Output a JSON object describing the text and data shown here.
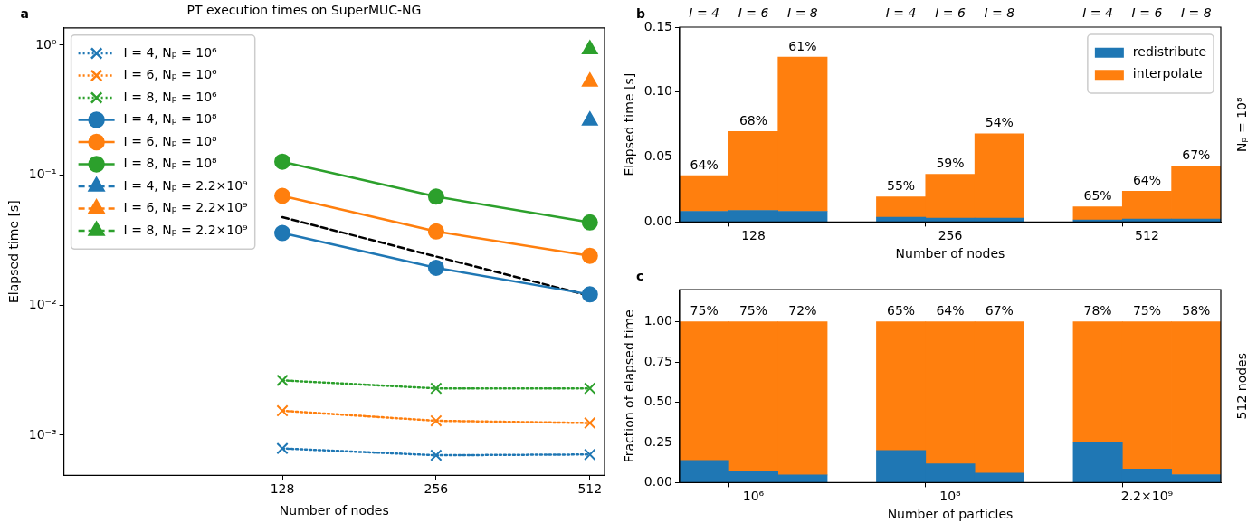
{
  "chart_data": [
    {
      "type": "line",
      "title": "PT execution times on SuperMUC-NG",
      "xlabel": "Number of nodes",
      "ylabel": "Elapsed time [s]",
      "annotations": [
        "a"
      ],
      "log": "xy",
      "xlim": [
        47.8,
        547
      ],
      "xticks": [
        128,
        256,
        512
      ],
      "ylim": [
        0.00049,
        1.36
      ],
      "yticks": [
        {
          "value": 1,
          "label": "10⁰"
        },
        {
          "value": 0.1,
          "label": "10⁻¹"
        },
        {
          "value": 0.01,
          "label": "10⁻²"
        },
        {
          "value": 0.001,
          "label": "10⁻³"
        }
      ],
      "legend": "top left",
      "series": [
        {
          "name": "I = 4, Nₚ = 10⁶",
          "color": "#1f77b4",
          "x": [
            128,
            256,
            512
          ],
          "values": [
            0.00079,
            0.0007,
            0.00071
          ],
          "marker": "cross",
          "line_style": "dotted"
        },
        {
          "name": "I = 6, Nₚ = 10⁶",
          "color": "#ff7f0e",
          "x": [
            128,
            256,
            512
          ],
          "values": [
            0.00154,
            0.00129,
            0.00124
          ],
          "marker": "cross",
          "line_style": "dotted"
        },
        {
          "name": "I = 8, Nₚ = 10⁶",
          "color": "#2ca02c",
          "x": [
            128,
            256,
            512
          ],
          "values": [
            0.00264,
            0.00229,
            0.00229
          ],
          "marker": "cross",
          "line_style": "dotted"
        },
        {
          "name": "I = 4, Nₚ = 10⁸",
          "color": "#1f77b4",
          "x": [
            128,
            256,
            512
          ],
          "values": [
            0.0359,
            0.0194,
            0.0121
          ],
          "marker": "circle",
          "line_style": "solid"
        },
        {
          "name": "I = 6, Nₚ = 10⁸",
          "color": "#ff7f0e",
          "x": [
            128,
            256,
            512
          ],
          "values": [
            0.0693,
            0.0369,
            0.024
          ],
          "marker": "circle",
          "line_style": "solid"
        },
        {
          "name": "I = 8, Nₚ = 10⁸",
          "color": "#2ca02c",
          "x": [
            128,
            256,
            512
          ],
          "values": [
            0.127,
            0.0684,
            0.0433
          ],
          "marker": "circle",
          "line_style": "solid"
        },
        {
          "name": "I = 4, Nₚ = 2.2×10⁹",
          "color": "#1f77b4",
          "x": [
            512
          ],
          "values": [
            0.263
          ],
          "marker": "triangle",
          "line_style": "dashed"
        },
        {
          "name": "I = 6, Nₚ = 2.2×10⁹",
          "color": "#ff7f0e",
          "x": [
            512
          ],
          "values": [
            0.525
          ],
          "marker": "triangle",
          "line_style": "dashed"
        },
        {
          "name": "I = 8, Nₚ = 2.2×10⁹",
          "color": "#2ca02c",
          "x": [
            512
          ],
          "values": [
            0.931
          ],
          "marker": "triangle",
          "line_style": "dashed"
        },
        {
          "color": "#000000",
          "x": [
            128,
            512
          ],
          "values": [
            0.0475,
            0.0118
          ],
          "marker": "none",
          "line_style": "dashed"
        }
      ]
    },
    {
      "type": "bar",
      "stacked": true,
      "xlabel": "Number of nodes",
      "ylabel": "Elapsed time [s]",
      "y2label": "Nₚ = 10⁸",
      "annotations": [
        "b",
        "I = 4",
        "I = 6",
        "I = 8",
        "I = 4",
        "I = 6",
        "I = 8",
        "I = 4",
        "I = 6",
        "I = 8",
        "64%",
        "68%",
        "61%",
        "55%",
        "59%",
        "54%",
        "65%",
        "64%",
        "67%"
      ],
      "categories": [
        null,
        "128",
        null,
        null,
        null,
        "256",
        null,
        null,
        null,
        "512",
        null
      ],
      "ylim": [
        0,
        0.15
      ],
      "yticks": [
        {
          "value": 0,
          "label": "0.00"
        },
        0.05,
        {
          "value": 0.1,
          "label": "0.10"
        },
        {
          "value": 0.15,
          "label": "0.15"
        }
      ],
      "legend": "top right",
      "series": [
        {
          "name": "redistribute",
          "color": "#1f77b4",
          "values": [
            0.0083,
            0.009,
            0.0083,
            null,
            0.0037,
            0.003,
            0.003,
            null,
            0.0017,
            0.0023,
            0.0023
          ]
        },
        {
          "name": "interpolate",
          "color": "#ff7f0e",
          "values": [
            0.0274,
            0.0607,
            0.1187,
            null,
            0.0156,
            0.0337,
            0.065,
            null,
            0.01,
            0.0214,
            0.0407
          ]
        }
      ]
    },
    {
      "type": "bar",
      "stacked": true,
      "xlabel": "Number of particles",
      "ylabel": "Fraction of elapsed time",
      "y2label": "512 nodes",
      "annotations": [
        "c",
        "75%",
        "75%",
        "72%",
        "65%",
        "64%",
        "67%",
        "78%",
        "75%",
        "58%"
      ],
      "categories": [
        null,
        "10⁶",
        null,
        null,
        null,
        "10⁸",
        null,
        null,
        null,
        "2.2×10⁹",
        null
      ],
      "ylim": [
        0,
        1.2
      ],
      "yticks": [
        {
          "value": 0,
          "label": "0.00"
        },
        0.25,
        {
          "value": 0.5,
          "label": "0.50"
        },
        0.75,
        {
          "value": 1,
          "label": "1.00"
        }
      ],
      "series": [
        {
          "color": "#1f77b4",
          "values": [
            0.138,
            0.074,
            0.048,
            null,
            0.2,
            0.117,
            0.059,
            null,
            0.25,
            0.085,
            0.05
          ]
        },
        {
          "color": "#ff7f0e",
          "values": [
            0.862,
            0.926,
            0.952,
            null,
            0.8,
            0.883,
            0.941,
            null,
            0.75,
            0.915,
            0.95
          ]
        }
      ]
    }
  ]
}
